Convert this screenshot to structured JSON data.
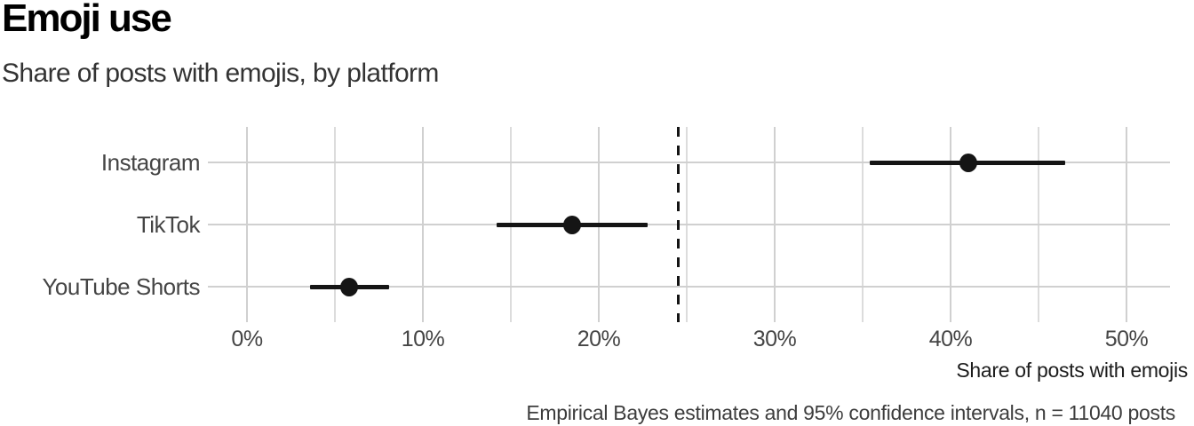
{
  "header": {
    "title": "Emoji use",
    "subtitle": "Share of posts with emojis, by platform"
  },
  "caption": "Empirical Bayes estimates and 95% confidence intervals, n = 11040 posts",
  "colors": {
    "background": "#ffffff",
    "grid_major": "#d0d0d0",
    "grid_minor": "#dcdcdc",
    "point": "#151515",
    "reference_line": "#141414",
    "title_text": "#000000",
    "axis_text": "#454545"
  },
  "chart_data": {
    "type": "pointrange",
    "title": "Emoji use",
    "subtitle": "Share of posts with emojis, by platform",
    "caption": "Empirical Bayes estimates and 95% confidence intervals, n = 11040 posts",
    "categories": [
      "Instagram",
      "TikTok",
      "YouTube Shorts"
    ],
    "series": [
      {
        "name": "Share of posts with emojis (%)",
        "values": [
          41.0,
          18.5,
          5.8
        ],
        "ci_low": [
          35.4,
          14.2,
          3.6
        ],
        "ci_high": [
          46.5,
          22.8,
          8.1
        ]
      }
    ],
    "reference_line": {
      "value": 24.5,
      "style": "dashed",
      "orientation": "vertical"
    },
    "xlabel": "Share of posts with emojis",
    "ylabel": "",
    "x_ticks": [
      {
        "value": 0,
        "label": "0%"
      },
      {
        "value": 10,
        "label": "10%"
      },
      {
        "value": 20,
        "label": "20%"
      },
      {
        "value": 30,
        "label": "30%"
      },
      {
        "value": 40,
        "label": "40%"
      },
      {
        "value": 50,
        "label": "50%"
      }
    ],
    "x_minor_ticks": [
      5,
      15,
      25,
      35,
      45
    ],
    "xlim": [
      -2.2,
      52.5
    ],
    "grid": "on",
    "legend": "none",
    "orientation": "horizontal"
  }
}
